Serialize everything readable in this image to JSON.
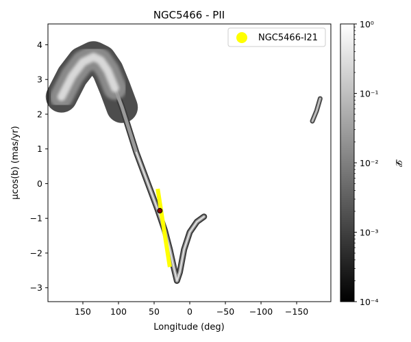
{
  "chart_data": {
    "type": "scatter",
    "title": "NGC5466 - PII",
    "xlabel": "Longitude (deg)",
    "ylabel": "μcos(b) (mas/yr)",
    "xlim": [
      199,
      -198
    ],
    "ylim": [
      -3.4,
      4.6
    ],
    "x_ticks": [
      150,
      100,
      50,
      0,
      -50,
      -100,
      -150
    ],
    "x_tick_labels": [
      "150",
      "100",
      "50",
      "0",
      "−50",
      "−100",
      "−150"
    ],
    "y_ticks": [
      4,
      3,
      2,
      1,
      0,
      -1,
      -2,
      -3
    ],
    "y_tick_labels": [
      "4",
      "3",
      "2",
      "1",
      "0",
      "−1",
      "−2",
      "−3"
    ],
    "density_stream": {
      "description_units": "longitude (deg) vs pmcosb (mas/yr)",
      "center_track": [
        [
          180,
          2.5
        ],
        [
          165,
          3.1
        ],
        [
          150,
          3.5
        ],
        [
          135,
          3.65
        ],
        [
          125,
          3.55
        ],
        [
          115,
          3.25
        ],
        [
          105,
          2.75
        ],
        [
          95,
          2.2
        ],
        [
          85,
          1.55
        ],
        [
          75,
          0.9
        ],
        [
          65,
          0.35
        ],
        [
          55,
          -0.2
        ],
        [
          45,
          -0.75
        ],
        [
          35,
          -1.35
        ],
        [
          28,
          -1.9
        ],
        [
          22,
          -2.45
        ],
        [
          18,
          -2.8
        ],
        [
          14,
          -2.55
        ],
        [
          8,
          -1.9
        ],
        [
          0,
          -1.4
        ],
        [
          -10,
          -1.1
        ],
        [
          -20,
          -0.95
        ]
      ],
      "wrap_segment": [
        [
          -172,
          1.8
        ],
        [
          -178,
          2.1
        ],
        [
          -183,
          2.45
        ]
      ]
    },
    "yellow_track": [
      [
        45,
        -0.15
      ],
      [
        28,
        -2.4
      ]
    ],
    "marker": {
      "x": 42,
      "y": -0.78
    },
    "legend": {
      "label": "NGC5466-I21",
      "color": "#ffff00",
      "position": "top-right"
    },
    "colorbar": {
      "label": "𝓛",
      "scale": "log",
      "range": [
        0.0001,
        1
      ],
      "tick_labels": [
        "10⁰",
        "10⁻¹",
        "10⁻²",
        "10⁻³",
        "10⁻⁴"
      ],
      "colormap": "gray"
    }
  }
}
